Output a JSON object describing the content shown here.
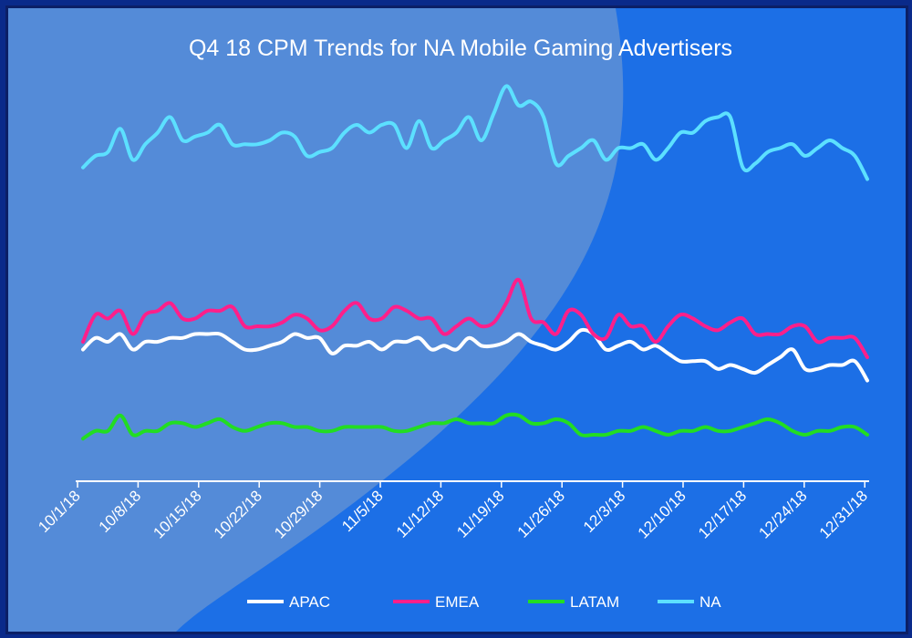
{
  "colors": {
    "background": "#1c6fe6",
    "panel_light": "#5b8ed6",
    "frame": "#0b1f66",
    "axis": "#ffffff"
  },
  "chart_data": {
    "type": "line",
    "title": "Q4 18 CPM Trends for NA Mobile Gaming Advertisers",
    "x_tick_labels": [
      "10/1/18",
      "10/8/18",
      "10/15/18",
      "10/22/18",
      "10/29/18",
      "11/5/18",
      "11/12/18",
      "11/19/18",
      "11/26/18",
      "12/3/18",
      "12/10/18",
      "12/17/18",
      "12/24/18",
      "12/31/18"
    ],
    "x_range": [
      "10/1/18",
      "1/1/19"
    ],
    "y_range": [
      0,
      100
    ],
    "grid": false,
    "legend_placement": "bottom",
    "series": [
      {
        "name": "APAC",
        "color": "#ffffff",
        "values": [
          34,
          37,
          36,
          38,
          34,
          36,
          36,
          37,
          37,
          38,
          38,
          38,
          36,
          34,
          34,
          35,
          36,
          38,
          37,
          37,
          33,
          35,
          35,
          36,
          34,
          36,
          36,
          37,
          34,
          35,
          34,
          37,
          35,
          35,
          36,
          38,
          36,
          35,
          34,
          36,
          39,
          38,
          34,
          35,
          36,
          34,
          35,
          33,
          31,
          31,
          31,
          29,
          30,
          29,
          28,
          30,
          32,
          34,
          29,
          29,
          30,
          30,
          31,
          26
        ]
      },
      {
        "name": "EMEA",
        "color": "#ff1f8a",
        "values": [
          36,
          43,
          42,
          44,
          38,
          43,
          44,
          46,
          42,
          42,
          44,
          44,
          45,
          40,
          40,
          40,
          41,
          43,
          42,
          39,
          40,
          44,
          46,
          42,
          42,
          45,
          44,
          42,
          42,
          38,
          40,
          42,
          40,
          41,
          46,
          52,
          42,
          41,
          38,
          44,
          43,
          38,
          37,
          43,
          40,
          40,
          36,
          40,
          43,
          42,
          40,
          39,
          41,
          42,
          38,
          38,
          38,
          40,
          40,
          36,
          37,
          37,
          37,
          32
        ]
      },
      {
        "name": "LATAM",
        "color": "#22dd22",
        "values": [
          11,
          13,
          13,
          17,
          12,
          13,
          13,
          15,
          15,
          14,
          15,
          16,
          14,
          13,
          14,
          15,
          15,
          14,
          14,
          13,
          13,
          14,
          14,
          14,
          14,
          13,
          13,
          14,
          15,
          15,
          16,
          15,
          15,
          15,
          17,
          17,
          15,
          15,
          16,
          15,
          12,
          12,
          12,
          13,
          13,
          14,
          13,
          12,
          13,
          13,
          14,
          13,
          13,
          14,
          15,
          16,
          15,
          13,
          12,
          13,
          13,
          14,
          14,
          12
        ]
      },
      {
        "name": "NA",
        "color": "#5ce0ff",
        "values": [
          81,
          84,
          85,
          91,
          83,
          87,
          90,
          94,
          88,
          89,
          90,
          92,
          87,
          87,
          87,
          88,
          90,
          89,
          84,
          85,
          86,
          90,
          92,
          90,
          92,
          92,
          86,
          93,
          86,
          88,
          90,
          94,
          88,
          95,
          102,
          97,
          98,
          94,
          82,
          84,
          86,
          88,
          83,
          86,
          86,
          87,
          83,
          86,
          90,
          90,
          93,
          94,
          94,
          81,
          82,
          85,
          86,
          87,
          84,
          86,
          88,
          86,
          84,
          78
        ]
      }
    ]
  }
}
